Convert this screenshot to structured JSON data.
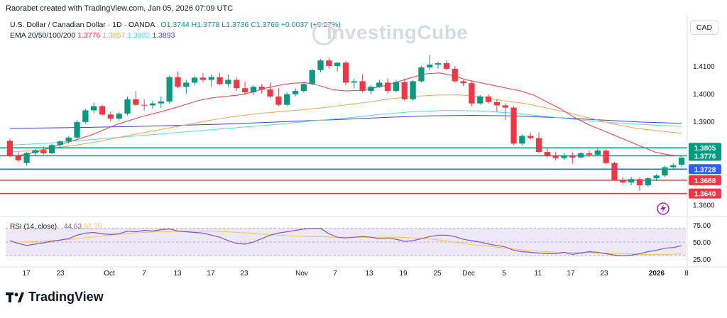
{
  "header": {
    "created_by": "Raorabet created with TradingView.com, Jan 05, 2026 07:09 UTC"
  },
  "symbol_info": {
    "title": "U.S. Dollar / Canadian Dollar · 1D · OANDA",
    "open": "O1.3744",
    "high": "H1.3778",
    "low": "L1.3736",
    "close": "C1.3769",
    "change": "+0.0037 (+0.27%)"
  },
  "ema_info": {
    "label": "EMA 20/50/100/200",
    "ema20": "1.3776",
    "ema50": "1.3857",
    "ema100": "1.3882",
    "ema200": "1.3893"
  },
  "currency_button": "CAD",
  "watermark": "InvestingCube",
  "footer_brand": "TradingView",
  "colors": {
    "up": "#089981",
    "down": "#f23645",
    "ema20": "#f23645",
    "ema50": "#f7a35c",
    "ema100": "#5bd6e0",
    "ema200": "#3b3fdb",
    "hline_green": "#089981",
    "hline_blue": "#2962ff",
    "hline_red": "#f23645",
    "rsi": "#7e57c2",
    "rsi_ma": "#f7c948"
  },
  "chart_data": [
    {
      "type": "candlestick",
      "ylim": [
        1.357,
        1.421
      ],
      "y_ticks": [
        "1.4100",
        "1.4000",
        "1.3900",
        "1.3600"
      ],
      "x_ticks": [
        "17",
        "23",
        "Oct",
        "7",
        "13",
        "17",
        "23",
        "Nov",
        "7",
        "13",
        "19",
        "25",
        "Dec",
        "5",
        "11",
        "17",
        "23",
        "2026",
        "8"
      ],
      "horizontal_levels": [
        {
          "value": 1.3805,
          "label": "1.3805",
          "color": "green"
        },
        {
          "value": 1.3776,
          "label": "1.3776",
          "color": "green"
        },
        {
          "value": 1.3728,
          "label": "1.3728",
          "color": "blue"
        },
        {
          "value": 1.3688,
          "label": "1.3688",
          "color": "red"
        },
        {
          "value": 1.364,
          "label": "1.3640",
          "color": "red"
        }
      ],
      "candles": [
        [
          1.383,
          1.3838,
          1.3772,
          1.3776
        ],
        [
          1.3776,
          1.379,
          1.3754,
          1.376
        ],
        [
          1.375,
          1.379,
          1.374,
          1.3786
        ],
        [
          1.3786,
          1.38,
          1.3775,
          1.3796
        ],
        [
          1.3796,
          1.381,
          1.378,
          1.3785
        ],
        [
          1.3785,
          1.382,
          1.3782,
          1.3815
        ],
        [
          1.3815,
          1.3832,
          1.3802,
          1.3828
        ],
        [
          1.3828,
          1.3848,
          1.382,
          1.3842
        ],
        [
          1.3842,
          1.3905,
          1.3838,
          1.3898
        ],
        [
          1.3898,
          1.3945,
          1.3892,
          1.394
        ],
        [
          1.394,
          1.3968,
          1.393,
          1.3955
        ],
        [
          1.3955,
          1.396,
          1.392,
          1.3925
        ],
        [
          1.3925,
          1.3935,
          1.39,
          1.391
        ],
        [
          1.391,
          1.3935,
          1.3902,
          1.3928
        ],
        [
          1.3928,
          1.399,
          1.3922,
          1.398
        ],
        [
          1.398,
          1.401,
          1.3955,
          1.396
        ],
        [
          1.396,
          1.398,
          1.394,
          1.3958
        ],
        [
          1.3958,
          1.3975,
          1.3945,
          1.3965
        ],
        [
          1.3965,
          1.399,
          1.395,
          1.3972
        ],
        [
          1.3972,
          1.4065,
          1.3965,
          1.406
        ],
        [
          1.406,
          1.408,
          1.402,
          1.4025
        ],
        [
          1.4025,
          1.405,
          1.4,
          1.404
        ],
        [
          1.404,
          1.4065,
          1.403,
          1.4058
        ],
        [
          1.4058,
          1.4075,
          1.404,
          1.405
        ],
        [
          1.405,
          1.407,
          1.4025,
          1.406
        ],
        [
          1.406,
          1.4075,
          1.403,
          1.4035
        ],
        [
          1.4035,
          1.407,
          1.4025,
          1.405
        ],
        [
          1.405,
          1.406,
          1.401,
          1.402
        ],
        [
          1.402,
          1.4045,
          1.3995,
          1.4005
        ],
        [
          1.4005,
          1.403,
          1.3995,
          1.4025
        ],
        [
          1.4025,
          1.4035,
          1.4,
          1.4015
        ],
        [
          1.4015,
          1.404,
          1.3985,
          1.399
        ],
        [
          1.399,
          1.402,
          1.3955,
          1.396
        ],
        [
          1.396,
          1.4005,
          1.3955,
          1.3998
        ],
        [
          1.3998,
          1.402,
          1.399,
          1.401
        ],
        [
          1.401,
          1.404,
          1.4005,
          1.4035
        ],
        [
          1.4035,
          1.409,
          1.403,
          1.4085
        ],
        [
          1.4085,
          1.4125,
          1.4078,
          1.412
        ],
        [
          1.412,
          1.413,
          1.409,
          1.41
        ],
        [
          1.41,
          1.411,
          1.408,
          1.4112
        ],
        [
          1.4112,
          1.4118,
          1.403,
          1.404
        ],
        [
          1.404,
          1.4055,
          1.402,
          1.4045
        ],
        [
          1.4045,
          1.407,
          1.4005,
          1.401
        ],
        [
          1.401,
          1.403,
          1.3998,
          1.4025
        ],
        [
          1.4025,
          1.405,
          1.402,
          1.404
        ],
        [
          1.404,
          1.4055,
          1.4,
          1.401
        ],
        [
          1.401,
          1.405,
          1.4005,
          1.4042
        ],
        [
          1.4042,
          1.4055,
          1.3975,
          1.398
        ],
        [
          1.398,
          1.405,
          1.3975,
          1.4045
        ],
        [
          1.4045,
          1.41,
          1.404,
          1.4095
        ],
        [
          1.4095,
          1.414,
          1.4085,
          1.4105
        ],
        [
          1.4105,
          1.4115,
          1.409,
          1.411
        ],
        [
          1.411,
          1.412,
          1.4085,
          1.409
        ],
        [
          1.409,
          1.41,
          1.404,
          1.4045
        ],
        [
          1.4045,
          1.405,
          1.4028,
          1.4038
        ],
        [
          1.4038,
          1.4045,
          1.3955,
          1.3965
        ],
        [
          1.3965,
          1.3995,
          1.396,
          1.399
        ],
        [
          1.399,
          1.3998,
          1.3965,
          1.397
        ],
        [
          1.397,
          1.398,
          1.3935,
          1.3958
        ],
        [
          1.3958,
          1.3965,
          1.3905,
          1.395
        ],
        [
          1.395,
          1.3955,
          1.3815,
          1.382
        ],
        [
          1.382,
          1.3855,
          1.3812,
          1.3848
        ],
        [
          1.3848,
          1.386,
          1.3835,
          1.384
        ],
        [
          1.384,
          1.386,
          1.3785,
          1.379
        ],
        [
          1.379,
          1.3805,
          1.377,
          1.3775
        ],
        [
          1.3775,
          1.379,
          1.376,
          1.3768
        ],
        [
          1.3768,
          1.3785,
          1.3762,
          1.3775
        ],
        [
          1.3775,
          1.3788,
          1.3748,
          1.377
        ],
        [
          1.377,
          1.379,
          1.3768,
          1.3785
        ],
        [
          1.3785,
          1.3795,
          1.3772,
          1.378
        ],
        [
          1.378,
          1.3805,
          1.3775,
          1.3795
        ],
        [
          1.3795,
          1.38,
          1.3745,
          1.375
        ],
        [
          1.375,
          1.3755,
          1.3685,
          1.369
        ],
        [
          1.369,
          1.37,
          1.3672,
          1.368
        ],
        [
          1.368,
          1.37,
          1.367,
          1.3692
        ],
        [
          1.3692,
          1.3698,
          1.365,
          1.367
        ],
        [
          1.367,
          1.37,
          1.3665,
          1.3695
        ],
        [
          1.3695,
          1.371,
          1.3685,
          1.3705
        ],
        [
          1.3705,
          1.374,
          1.37,
          1.3735
        ],
        [
          1.3735,
          1.375,
          1.3725,
          1.3742
        ],
        [
          1.3744,
          1.3778,
          1.3736,
          1.3769
        ]
      ],
      "ema20": [
        1.3775,
        1.378,
        1.379,
        1.3805,
        1.382,
        1.3835,
        1.385,
        1.387,
        1.389,
        1.3905,
        1.392,
        1.3932,
        1.3945,
        1.396,
        1.3975,
        1.3985,
        1.399,
        1.3995,
        1.4005,
        1.402,
        1.403,
        1.4038,
        1.404,
        1.403,
        1.4015,
        1.401,
        1.4012,
        1.402,
        1.403,
        1.4045,
        1.406,
        1.4072,
        1.4075,
        1.4065,
        1.405,
        1.404,
        1.403,
        1.402,
        1.401,
        1.3995,
        1.397,
        1.3945,
        1.3915,
        1.389,
        1.387,
        1.385,
        1.383,
        1.381,
        1.379,
        1.378,
        1.3775
      ],
      "ema50": [
        1.379,
        1.3795,
        1.3805,
        1.3815,
        1.3828,
        1.3845,
        1.386,
        1.3875,
        1.389,
        1.3905,
        1.3918,
        1.3928,
        1.3935,
        1.3942,
        1.395,
        1.396,
        1.397,
        1.3982,
        1.399,
        1.3995,
        1.3996,
        1.399,
        1.3975,
        1.3965,
        1.3948,
        1.393,
        1.391,
        1.389,
        1.3875,
        1.3866,
        1.3857
      ],
      "ema100": [
        1.3815,
        1.382,
        1.383,
        1.384,
        1.385,
        1.386,
        1.387,
        1.388,
        1.389,
        1.3902,
        1.3912,
        1.3925,
        1.3935,
        1.394,
        1.3938,
        1.393,
        1.3918,
        1.3905,
        1.3895,
        1.3888,
        1.3882
      ],
      "ema200": [
        1.3875,
        1.3877,
        1.3879,
        1.3882,
        1.3886,
        1.389,
        1.3896,
        1.3902,
        1.3908,
        1.3915,
        1.392,
        1.3922,
        1.392,
        1.3914,
        1.3906,
        1.3898,
        1.3893
      ]
    },
    {
      "type": "line",
      "title": "RSI (14, close)",
      "rsi_value": "44.63",
      "rsi_ma_value": "32.70",
      "ylim": [
        20,
        80
      ],
      "y_ticks": [
        "75.00",
        "50.00",
        "25.00"
      ],
      "rsi": [
        52,
        48,
        45,
        47,
        49,
        51,
        53,
        55,
        60,
        63,
        64,
        62,
        61,
        62,
        66,
        65,
        67,
        66,
        68,
        69,
        66,
        65,
        64,
        63,
        60,
        57,
        52,
        48,
        47,
        50,
        55,
        60,
        63,
        65,
        67,
        69,
        70,
        70,
        62,
        57,
        56,
        57,
        58,
        57,
        55,
        56,
        54,
        51,
        52,
        55,
        58,
        60,
        60,
        58,
        54,
        52,
        50,
        47,
        45,
        43,
        38,
        36,
        35,
        34,
        33,
        33,
        35,
        32,
        34,
        36,
        35,
        33,
        31,
        30,
        31,
        33,
        36,
        38,
        41,
        42,
        44.63
      ],
      "rsi_ma": [
        50,
        50,
        51,
        52,
        53,
        55,
        57,
        59,
        61,
        63,
        64,
        65,
        65,
        66,
        66,
        66,
        65,
        64,
        63,
        61,
        60,
        59,
        58,
        58,
        57,
        57,
        57,
        57,
        57,
        57,
        56,
        55,
        53,
        50,
        47,
        45,
        43,
        41,
        39,
        37,
        36,
        35,
        35,
        35,
        34,
        34,
        33,
        32,
        32,
        32,
        32.7
      ]
    }
  ]
}
